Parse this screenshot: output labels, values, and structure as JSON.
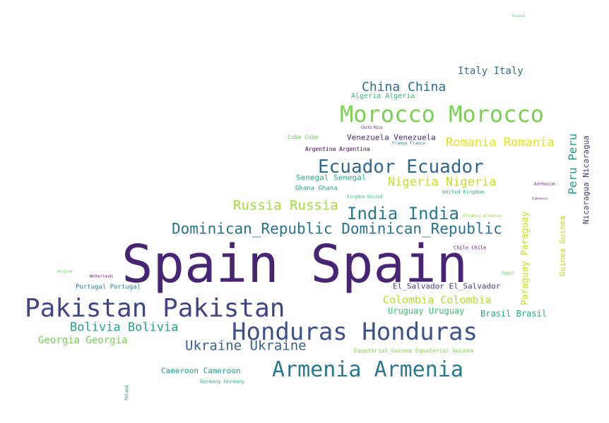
{
  "words": [
    {
      "text": "Spain Spain",
      "color": "#482475"
    },
    {
      "text": "Pakistan Pakistan",
      "color": "#414487"
    },
    {
      "text": "Honduras Honduras",
      "color": "#3b528b"
    },
    {
      "text": "Morocco Morocco",
      "color": "#7ad151"
    },
    {
      "text": "Armenia Armenia",
      "color": "#2a788e"
    },
    {
      "text": "Ecuador Ecuador",
      "color": "#31688e"
    },
    {
      "text": "Dominican_Republic Dominican_Republic",
      "color": "#2c728e"
    },
    {
      "text": "India India",
      "color": "#2a788e"
    },
    {
      "text": "Russia Russia",
      "color": "#a2da37"
    },
    {
      "text": "Ukraine Ukraine",
      "color": "#355f8d"
    },
    {
      "text": "Bolivia Bolivia",
      "color": "#20a386"
    },
    {
      "text": "China China",
      "color": "#2f6c8e"
    },
    {
      "text": "Romania Romania",
      "color": "#e2e418"
    },
    {
      "text": "Nigeria Nigeria",
      "color": "#c8e020"
    },
    {
      "text": "Italy Italy",
      "color": "#2f6c8e"
    },
    {
      "text": "Colombia Colombia",
      "color": "#b5de2b"
    },
    {
      "text": "Georgia Georgia",
      "color": "#75d054"
    },
    {
      "text": "Peru Peru",
      "color": "#1f9a8a"
    },
    {
      "text": "Paraguay Paraguay",
      "color": "#c2df23"
    },
    {
      "text": "Nicaragua Nicaragua",
      "color": "#46327e"
    },
    {
      "text": "Guinea Guinea",
      "color": "#b8de29"
    },
    {
      "text": "Brasil Brasil",
      "color": "#22a884"
    },
    {
      "text": "Uruguay Uruguay",
      "color": "#3fbc73"
    },
    {
      "text": "El_Salvador El_Salvador",
      "color": "#433e85"
    },
    {
      "text": "Cameroon Cameroon",
      "color": "#1e9c89"
    },
    {
      "text": "Venezuela Venezuela",
      "color": "#472d7b"
    },
    {
      "text": "Senegal Senegal",
      "color": "#28ae80"
    },
    {
      "text": "Algeria Algeria",
      "color": "#34b679"
    },
    {
      "text": "Portugal Portugal",
      "color": "#277f8e"
    },
    {
      "text": "Ghana Ghana",
      "color": "#1fa187"
    },
    {
      "text": "Argentina Argentina",
      "color": "#440154"
    },
    {
      "text": "Equatorial_Guinea Equatorial_Guinea",
      "color": "#84d44b"
    },
    {
      "text": "Germany Germany",
      "color": "#2db27d"
    },
    {
      "text": "Cuba Cuba",
      "color": "#6ccd5a"
    },
    {
      "text": "Chile Chile",
      "color": "#481f70"
    },
    {
      "text": "United Kingdom",
      "color": "#22a884"
    },
    {
      "text": "Kingdom United",
      "color": "#3dbc74"
    },
    {
      "text": "France France",
      "color": "#2a788e"
    },
    {
      "text": "Albania Albania",
      "color": "#8fd744"
    },
    {
      "text": "Egypt",
      "color": "#65cb5e"
    },
    {
      "text": "Costa Rica",
      "color": "#440154"
    },
    {
      "text": "Netherlands",
      "color": "#440154"
    },
    {
      "text": "Azerbaijan",
      "color": "#440154"
    },
    {
      "text": "Belgium",
      "color": "#5ec962"
    },
    {
      "text": "Tanzania",
      "color": "#4ac16d"
    },
    {
      "text": "Poland",
      "color": "#277f8e"
    },
    {
      "text": "Indonesia",
      "color": "#471063"
    }
  ]
}
